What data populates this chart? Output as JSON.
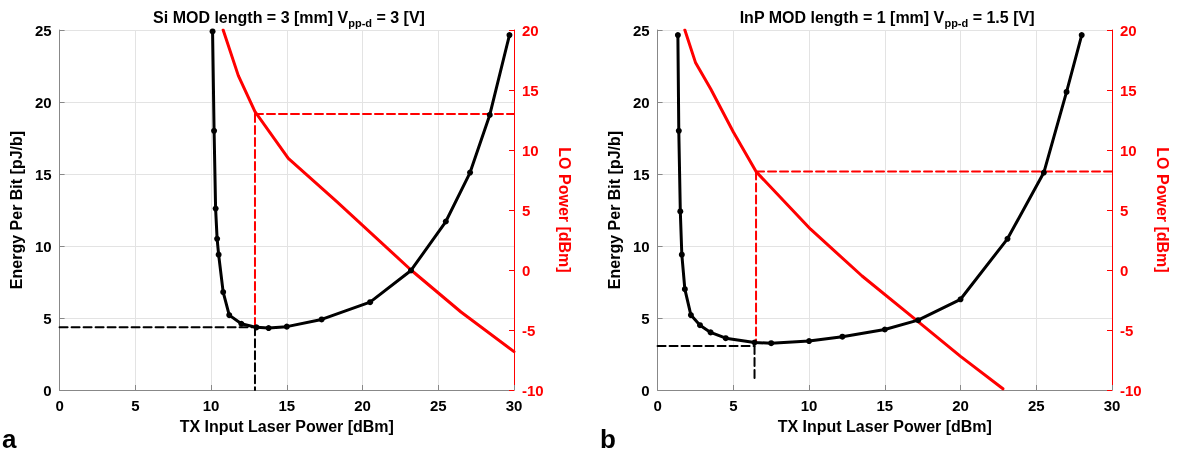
{
  "chart_data": [
    {
      "type": "line",
      "title": "Si MOD length = 3 [mm] V$_{pp-d}$ = 3 [V]",
      "xlabel": "TX Input Laser Power [dBm]",
      "ylabel": "Energy Per Bit [pJ/b]",
      "y2label": "LO Power [dBm]",
      "annotations": [
        "a"
      ],
      "xlim": [
        0,
        30
      ],
      "xticks": [
        0,
        5,
        10,
        15,
        20,
        25,
        30
      ],
      "ylim": [
        0,
        25
      ],
      "yticks": [
        0,
        5,
        10,
        15,
        20,
        25
      ],
      "y2lim": [
        -10,
        20
      ],
      "y2ticks": [
        -10,
        -5,
        0,
        5,
        10,
        15,
        20
      ],
      "grid": true,
      "series": [
        {
          "color": "#000000",
          "marker": "circle",
          "line_style": "solid",
          "x": [
            10.1,
            10.2,
            10.3,
            10.4,
            10.5,
            10.8,
            11.2,
            12,
            13,
            13.8,
            15,
            17.3,
            20.5,
            23.2,
            25.5,
            27.1,
            28.4,
            29.7
          ],
          "values": [
            24.9,
            18,
            12.6,
            10.5,
            9.4,
            6.8,
            5.2,
            4.6,
            4.35,
            4.3,
            4.4,
            4.9,
            6.1,
            8.3,
            11.7,
            15.1,
            19.1,
            24.65
          ]
        },
        {
          "color": "#ff0000",
          "marker": "none",
          "line_style": "solid",
          "axis": "y2",
          "x": [
            10.8,
            11.8,
            12.9,
            15.1,
            18.3,
            23.2,
            26.5,
            30
          ],
          "values": [
            20,
            16.2,
            13.2,
            9.3,
            5.7,
            0,
            -3.5,
            -6.8
          ]
        },
        {
          "color": "#ff0000",
          "marker": "none",
          "line_style": "dashed",
          "axis": "y2",
          "x": [
            12.9,
            30
          ],
          "values": [
            13,
            13
          ]
        },
        {
          "color": "#ff0000",
          "marker": "none",
          "line_style": "dashed",
          "axis": "y2",
          "x": [
            12.9,
            12.9
          ],
          "values": [
            13,
            -4.8
          ]
        },
        {
          "color": "#000000",
          "marker": "none",
          "line_style": "dashed",
          "x": [
            0,
            12.9
          ],
          "values": [
            4.35,
            4.35
          ]
        },
        {
          "color": "#000000",
          "marker": "none",
          "line_style": "dashed",
          "x": [
            12.9,
            12.9
          ],
          "values": [
            4.35,
            0
          ]
        }
      ]
    },
    {
      "type": "line",
      "title": "InP MOD length = 1 [mm] V$_{pp-d}$ = 1.5 [V]",
      "xlabel": "TX Input Laser Power [dBm]",
      "ylabel": "Energy Per Bit [pJ/b]",
      "y2label": "LO Power [dBm]",
      "annotations": [
        "b"
      ],
      "xlim": [
        0,
        30
      ],
      "xticks": [
        0,
        5,
        10,
        15,
        20,
        25,
        30
      ],
      "ylim": [
        0,
        25
      ],
      "yticks": [
        0,
        5,
        10,
        15,
        20,
        25
      ],
      "y2lim": [
        -10,
        20
      ],
      "y2ticks": [
        -10,
        -5,
        0,
        5,
        10,
        15,
        20
      ],
      "grid": true,
      "series": [
        {
          "color": "#000000",
          "marker": "circle",
          "line_style": "solid",
          "x": [
            1.34,
            1.4,
            1.5,
            1.6,
            1.8,
            2.2,
            2.8,
            3.5,
            4.5,
            6.4,
            7.5,
            10,
            12.2,
            15,
            17.2,
            20,
            23.1,
            25.5,
            27,
            28
          ],
          "values": [
            24.65,
            18,
            12.4,
            9.4,
            7,
            5.2,
            4.5,
            4,
            3.6,
            3.3,
            3.25,
            3.4,
            3.7,
            4.2,
            4.85,
            6.3,
            10.5,
            15.1,
            20.7,
            24.65
          ]
        },
        {
          "color": "#ff0000",
          "marker": "none",
          "line_style": "solid",
          "axis": "y2",
          "x": [
            1.8,
            2.5,
            3.5,
            5,
            6.5,
            10.1,
            13.5,
            17.1,
            20,
            22.8
          ],
          "values": [
            20,
            17.3,
            15.1,
            11.5,
            8.2,
            3.4,
            -0.5,
            -4.2,
            -7.2,
            -9.9
          ]
        },
        {
          "color": "#ff0000",
          "marker": "none",
          "line_style": "dashed",
          "axis": "y2",
          "x": [
            6.5,
            30
          ],
          "values": [
            8.2,
            8.2
          ]
        },
        {
          "color": "#ff0000",
          "marker": "none",
          "line_style": "dashed",
          "axis": "y2",
          "x": [
            6.5,
            6.5
          ],
          "values": [
            8.2,
            -6
          ]
        },
        {
          "color": "#000000",
          "marker": "none",
          "line_style": "dashed",
          "x": [
            0,
            6.4
          ],
          "values": [
            3.05,
            3.05
          ]
        },
        {
          "color": "#000000",
          "marker": "none",
          "line_style": "dashed",
          "x": [
            6.4,
            6.4
          ],
          "values": [
            3.05,
            0.7
          ]
        }
      ]
    }
  ]
}
